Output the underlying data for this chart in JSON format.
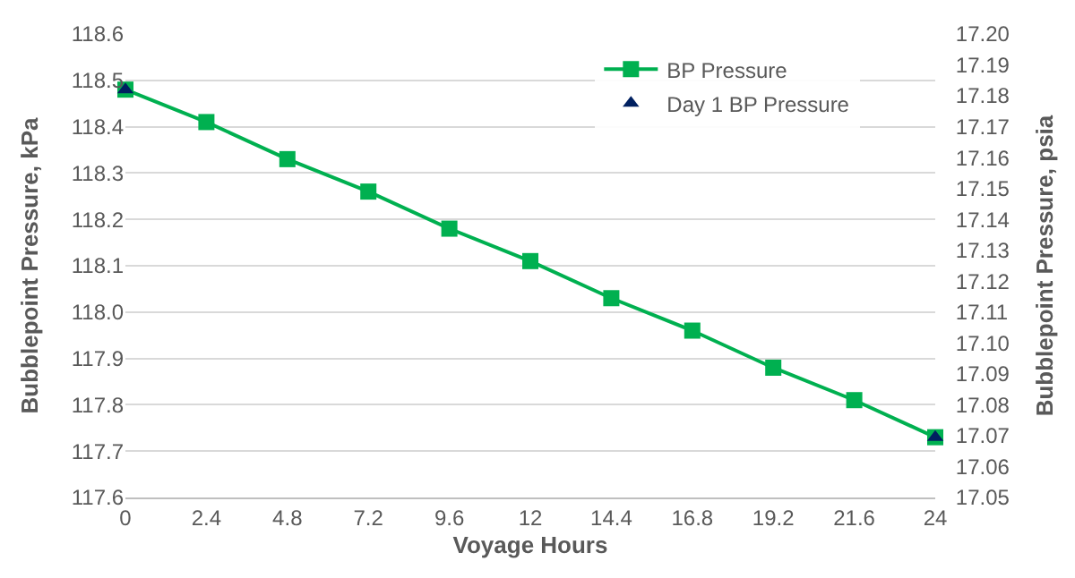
{
  "chart_data": {
    "type": "line",
    "xlabel": "Voyage Hours",
    "ylabel": "Bubblepoint Pressure, kPa",
    "y2label": "Bubblepoint Pressure, psia",
    "x": [
      0,
      2.4,
      4.8,
      7.2,
      9.6,
      12,
      14.4,
      16.8,
      19.2,
      21.6,
      24
    ],
    "series": [
      {
        "name": "BP Pressure",
        "marker": "square",
        "color": "#00b050",
        "values": [
          118.48,
          118.41,
          118.33,
          118.26,
          118.18,
          118.11,
          118.03,
          117.96,
          117.88,
          117.81,
          117.73
        ]
      },
      {
        "name": "Day 1 BP Pressure",
        "type": "scatter",
        "marker": "triangle",
        "color": "#002060",
        "x": [
          0,
          24
        ],
        "values": [
          118.48,
          117.73
        ]
      }
    ],
    "xlim": [
      0,
      24
    ],
    "xticks": [
      0,
      2.4,
      4.8,
      7.2,
      9.6,
      12,
      14.4,
      16.8,
      19.2,
      21.6,
      24
    ],
    "ylim": [
      117.6,
      118.6
    ],
    "yticks": [
      {
        "value": 117.6,
        "label": "117.6"
      },
      {
        "value": 117.7,
        "label": "117.7"
      },
      {
        "value": 117.8,
        "label": "117.8"
      },
      {
        "value": 117.9,
        "label": "117.9"
      },
      {
        "value": 118.0,
        "label": "118.0"
      },
      {
        "value": 118.1,
        "label": "118.1"
      },
      {
        "value": 118.2,
        "label": "118.2"
      },
      {
        "value": 118.3,
        "label": "118.3"
      },
      {
        "value": 118.4,
        "label": "118.4"
      },
      {
        "value": 118.5,
        "label": "118.5"
      },
      {
        "value": 118.6,
        "label": "118.6"
      }
    ],
    "y2lim": [
      17.05,
      17.2
    ],
    "y2ticks": [
      {
        "value": 17.05,
        "label": "17.05"
      },
      {
        "value": 17.06,
        "label": "17.06"
      },
      {
        "value": 17.07,
        "label": "17.07"
      },
      {
        "value": 17.08,
        "label": "17.08"
      },
      {
        "value": 17.09,
        "label": "17.09"
      },
      {
        "value": 17.1,
        "label": "17.10"
      },
      {
        "value": 17.11,
        "label": "17.11"
      },
      {
        "value": 17.12,
        "label": "17.12"
      },
      {
        "value": 17.13,
        "label": "17.13"
      },
      {
        "value": 17.14,
        "label": "17.14"
      },
      {
        "value": 17.15,
        "label": "17.15"
      },
      {
        "value": 17.16,
        "label": "17.16"
      },
      {
        "value": 17.17,
        "label": "17.17"
      },
      {
        "value": 17.18,
        "label": "17.18"
      },
      {
        "value": 17.19,
        "label": "17.19"
      },
      {
        "value": 17.2,
        "label": "17.20"
      }
    ],
    "grid": "y",
    "legend": "top right"
  }
}
